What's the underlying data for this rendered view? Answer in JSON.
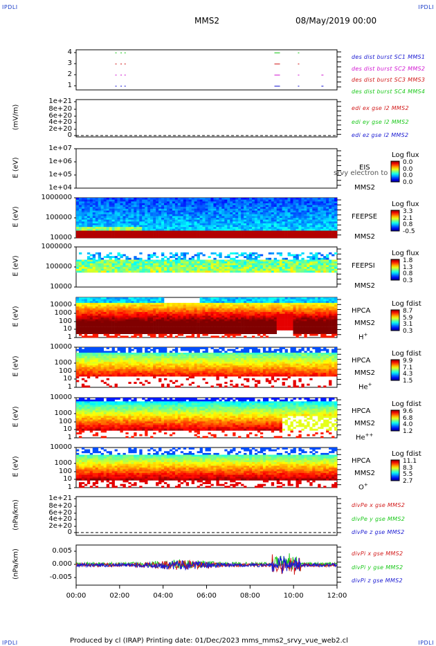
{
  "header": {
    "corner_left": "IPDLI",
    "corner_right": "IPDLI",
    "spacecraft": "MMS2",
    "date": "08/May/2019 00:00"
  },
  "footer": {
    "corner_left": "IPDLI",
    "corner_right": "IPDLI",
    "text": "Produced by cl (IRAP)   Printing date: 01/Dec/2023   mms_mms2_srvy_vue_web2.cl"
  },
  "chart_data": [
    {
      "type": "scatter",
      "id": "burst",
      "ylabel": "",
      "yticks": [
        "4",
        "3",
        "2",
        "1"
      ],
      "series": [
        {
          "name": "des dist burst SC1 MMS1",
          "color": "#1a1ad2"
        },
        {
          "name": "des dist burst SC2 MMS2",
          "color": "#d21ad2"
        },
        {
          "name": "des dist burst SC3 MMS3",
          "color": "#d21a1a"
        },
        {
          "name": "des dist burst SC4 MMS4",
          "color": "#1ac81a"
        }
      ]
    },
    {
      "type": "line",
      "id": "edi",
      "ylabel": "(mV/m)",
      "yticks": [
        "1e+21",
        "8e+20",
        "6e+20",
        "4e+20",
        "2e+20",
        "0"
      ],
      "series": [
        {
          "name": "edi ex gse l2 MMS2",
          "color": "#d21a1a"
        },
        {
          "name": "edi ey gse l2 MMS2",
          "color": "#1ac81a"
        },
        {
          "name": "edi ez gse l2 MMS2",
          "color": "#1a1ad2"
        }
      ]
    },
    {
      "type": "heatmap",
      "id": "eis",
      "ylabel": "E (eV)",
      "yticks": [
        "1e+07",
        "1e+06",
        "1e+05",
        "1e+04"
      ],
      "instrument": "EIS",
      "spacecraft": "MMS2",
      "overlay": "srvy electron to",
      "colorbar_title": "Log flux",
      "colorbar_values": [
        "0.0",
        "0.0",
        "0.0",
        "0.0"
      ]
    },
    {
      "type": "heatmap",
      "id": "feepse",
      "ylabel": "E (eV)",
      "yticks": [
        "1000000",
        "100000",
        "10000"
      ],
      "instrument": "FEEPSE",
      "spacecraft": "MMS2",
      "colorbar_title": "Log flux",
      "colorbar_values": [
        "3.3",
        "2.1",
        "0.8",
        "-0.5"
      ]
    },
    {
      "type": "heatmap",
      "id": "feepsi",
      "ylabel": "E (eV)",
      "yticks": [
        "1000000",
        "100000",
        "10000"
      ],
      "instrument": "FEEPSI",
      "spacecraft": "MMS2",
      "colorbar_title": "Log flux",
      "colorbar_values": [
        "1.8",
        "1.3",
        "0.8",
        "0.3"
      ]
    },
    {
      "type": "heatmap",
      "id": "hpca_h",
      "ylabel": "E (eV)",
      "yticks": [
        "10000",
        "1000",
        "100",
        "10",
        "1"
      ],
      "instrument": "HPCA",
      "spacecraft": "MMS2",
      "species": "H",
      "charge": "+",
      "colorbar_title": "Log fdist",
      "colorbar_values": [
        "8.7",
        "5.9",
        "3.1",
        "0.3"
      ]
    },
    {
      "type": "heatmap",
      "id": "hpca_he",
      "ylabel": "E (eV)",
      "yticks": [
        "10000",
        "1000",
        "100",
        "10",
        "1"
      ],
      "instrument": "HPCA",
      "spacecraft": "MMS2",
      "species": "He",
      "charge": "+",
      "colorbar_title": "Log fdist",
      "colorbar_values": [
        "9.9",
        "7.1",
        "4.3",
        "1.5"
      ]
    },
    {
      "type": "heatmap",
      "id": "hpca_hepp",
      "ylabel": "E (eV)",
      "yticks": [
        "10000",
        "1000",
        "100",
        "10",
        "1"
      ],
      "instrument": "HPCA",
      "spacecraft": "MMS2",
      "species": "He",
      "charge": "++",
      "colorbar_title": "Log fdist",
      "colorbar_values": [
        "9.6",
        "6.8",
        "4.0",
        "1.2"
      ]
    },
    {
      "type": "heatmap",
      "id": "hpca_o",
      "ylabel": "E (eV)",
      "yticks": [
        "10000",
        "1000",
        "100",
        "10",
        "1"
      ],
      "instrument": "HPCA",
      "spacecraft": "MMS2",
      "species": "O",
      "charge": "+",
      "colorbar_title": "Log fdist",
      "colorbar_values": [
        "11.1",
        "8.3",
        "5.5",
        "2.7"
      ]
    },
    {
      "type": "line",
      "id": "divpe",
      "ylabel": "(nPa/km)",
      "yticks": [
        "1e+21",
        "8e+20",
        "6e+20",
        "4e+20",
        "2e+20",
        "0"
      ],
      "series": [
        {
          "name": "divPe x gse MMS2",
          "color": "#d21a1a"
        },
        {
          "name": "divPe y gse MMS2",
          "color": "#1ac81a"
        },
        {
          "name": "divPe z gse MMS2",
          "color": "#1a1ad2"
        }
      ]
    },
    {
      "type": "line",
      "id": "divpi",
      "ylabel": "(nPa/km)",
      "yticks": [
        "0.005",
        "0.000",
        "-0.005"
      ],
      "ylim": [
        -0.008,
        0.008
      ],
      "series": [
        {
          "name": "divPi x gse MMS2",
          "color": "#d21a1a"
        },
        {
          "name": "divPi y gse MMS2",
          "color": "#1ac81a"
        },
        {
          "name": "divPi z gse MMS2",
          "color": "#1a1ad2"
        }
      ]
    }
  ],
  "xaxis": {
    "ticks": [
      "00:00",
      "02:00",
      "04:00",
      "06:00",
      "08:00",
      "10:00",
      "12:00"
    ]
  }
}
